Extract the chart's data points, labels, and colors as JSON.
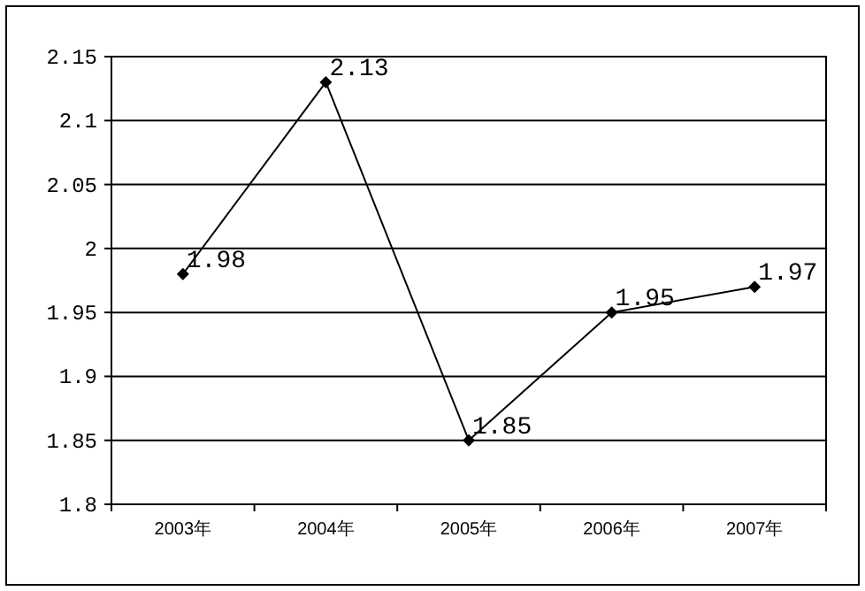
{
  "chart_data": {
    "type": "line",
    "categories": [
      "2003年",
      "2004年",
      "2005年",
      "2006年",
      "2007年"
    ],
    "values": [
      1.98,
      2.13,
      1.85,
      1.95,
      1.97
    ],
    "color": "#000000",
    "ylim": [
      1.8,
      2.15
    ],
    "yticks": [
      1.8,
      1.85,
      1.9,
      1.95,
      2,
      2.05,
      2.1,
      2.15
    ],
    "grid": "y",
    "marker": "diamond",
    "line_style": "solid",
    "data_labels": true
  }
}
